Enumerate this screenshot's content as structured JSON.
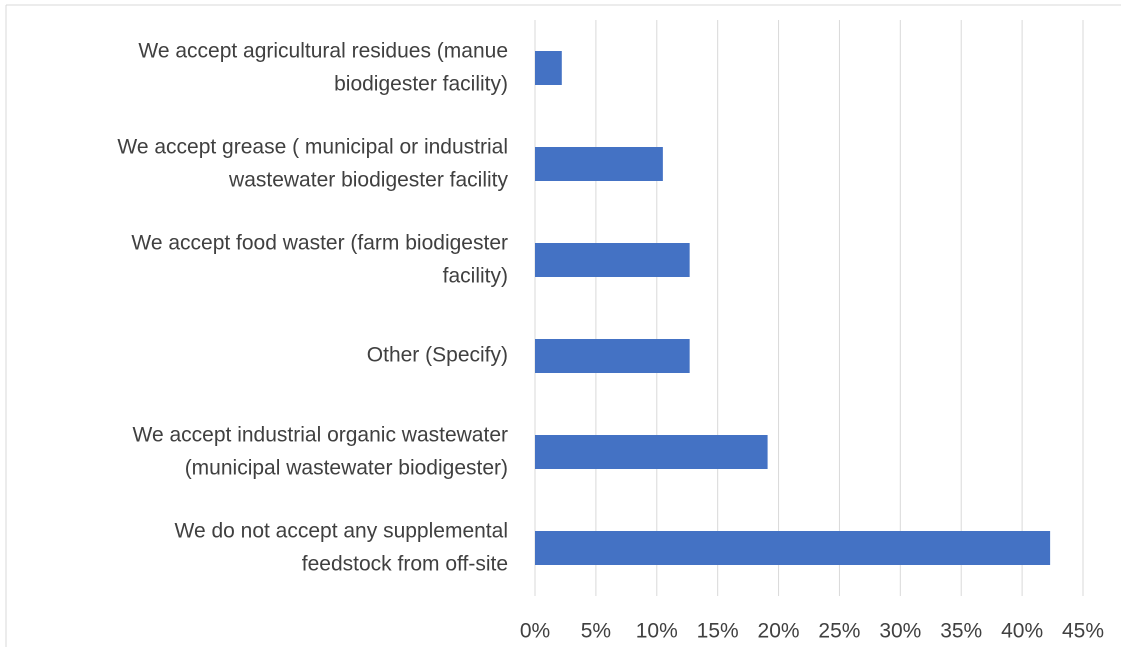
{
  "chart_data": {
    "type": "bar",
    "orientation": "horizontal",
    "categories": [
      "We accept agricultural residues (manue\nbiodigester facility)",
      "We accept grease ( municipal or industrial\nwastewater biodigester facility",
      "We accept food waster (farm biodigester\nfacility)",
      "Other (Specify)",
      "We accept industrial organic wastewater\n(municipal wastewater biodigester)",
      "We do not accept any supplemental\nfeedstock from off-site"
    ],
    "values": [
      2.2,
      10.5,
      12.7,
      12.7,
      19.1,
      42.3
    ],
    "color": "#4472c4",
    "xlim": [
      0,
      45
    ],
    "xticks": [
      {
        "value": 0,
        "label": "0%"
      },
      {
        "value": 5,
        "label": "5%"
      },
      {
        "value": 10,
        "label": "10%"
      },
      {
        "value": 15,
        "label": "15%"
      },
      {
        "value": 20,
        "label": "20%"
      },
      {
        "value": 25,
        "label": "25%"
      },
      {
        "value": 30,
        "label": "30%"
      },
      {
        "value": 35,
        "label": "35%"
      },
      {
        "value": 40,
        "label": "40%"
      },
      {
        "value": 45,
        "label": "45%"
      }
    ],
    "grid": true
  }
}
